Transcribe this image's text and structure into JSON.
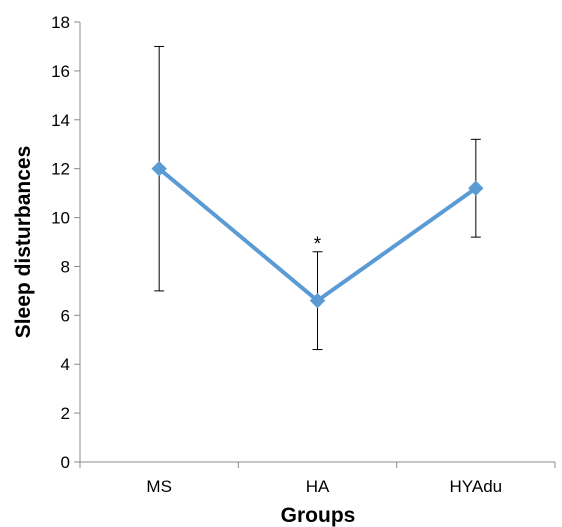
{
  "chart_data": {
    "type": "line",
    "categories": [
      "MS",
      "HA",
      "HYAdu"
    ],
    "series": [
      {
        "values": [
          12.0,
          6.6,
          11.2
        ],
        "error_low": [
          7.0,
          4.6,
          9.2
        ],
        "error_high": [
          17.0,
          8.6,
          13.2
        ],
        "color": "#5b9bd5",
        "marker": "diamond"
      }
    ],
    "annotations": [
      {
        "category": "HA",
        "text": "*"
      }
    ],
    "xlabel": "Groups",
    "ylabel": "Sleep disturbances",
    "ylim": [
      0,
      18
    ],
    "yticks": [
      0,
      2,
      4,
      6,
      8,
      10,
      12,
      14,
      16,
      18
    ],
    "ytick_labels": [
      "0",
      "2",
      "4",
      "6",
      "8",
      "10",
      "12",
      "14",
      "16",
      "18"
    ],
    "grid": false,
    "legend": "none"
  }
}
